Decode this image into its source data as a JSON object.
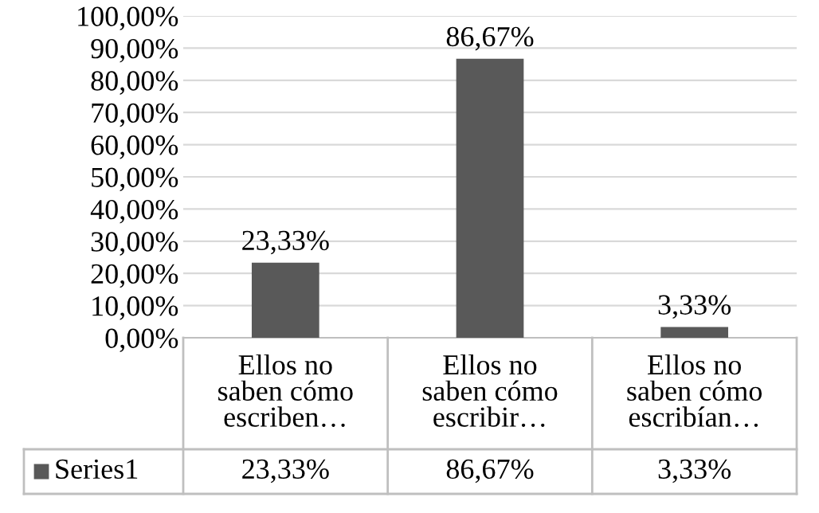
{
  "chart_data": {
    "type": "bar",
    "categories": [
      "Ellos no saben cómo escriben…",
      "Ellos no saben cómo escribir…",
      "Ellos no saben cómo escribían…"
    ],
    "series": [
      {
        "name": "Series1",
        "color": "#595959",
        "values": [
          23.33,
          86.67,
          3.33
        ],
        "value_labels": [
          "23,33%",
          "86,67%",
          "3,33%"
        ]
      }
    ],
    "ylim": [
      0,
      100
    ],
    "yticks": [
      {
        "value": 0,
        "label": "0,00%"
      },
      {
        "value": 10,
        "label": "10,00%"
      },
      {
        "value": 20,
        "label": "20,00%"
      },
      {
        "value": 30,
        "label": "30,00%"
      },
      {
        "value": 40,
        "label": "40,00%"
      },
      {
        "value": 50,
        "label": "50,00%"
      },
      {
        "value": 60,
        "label": "60,00%"
      },
      {
        "value": 70,
        "label": "70,00%"
      },
      {
        "value": 80,
        "label": "80,00%"
      },
      {
        "value": 90,
        "label": "90,00%"
      },
      {
        "value": 100,
        "label": "100,00%"
      }
    ],
    "grid": "y"
  }
}
